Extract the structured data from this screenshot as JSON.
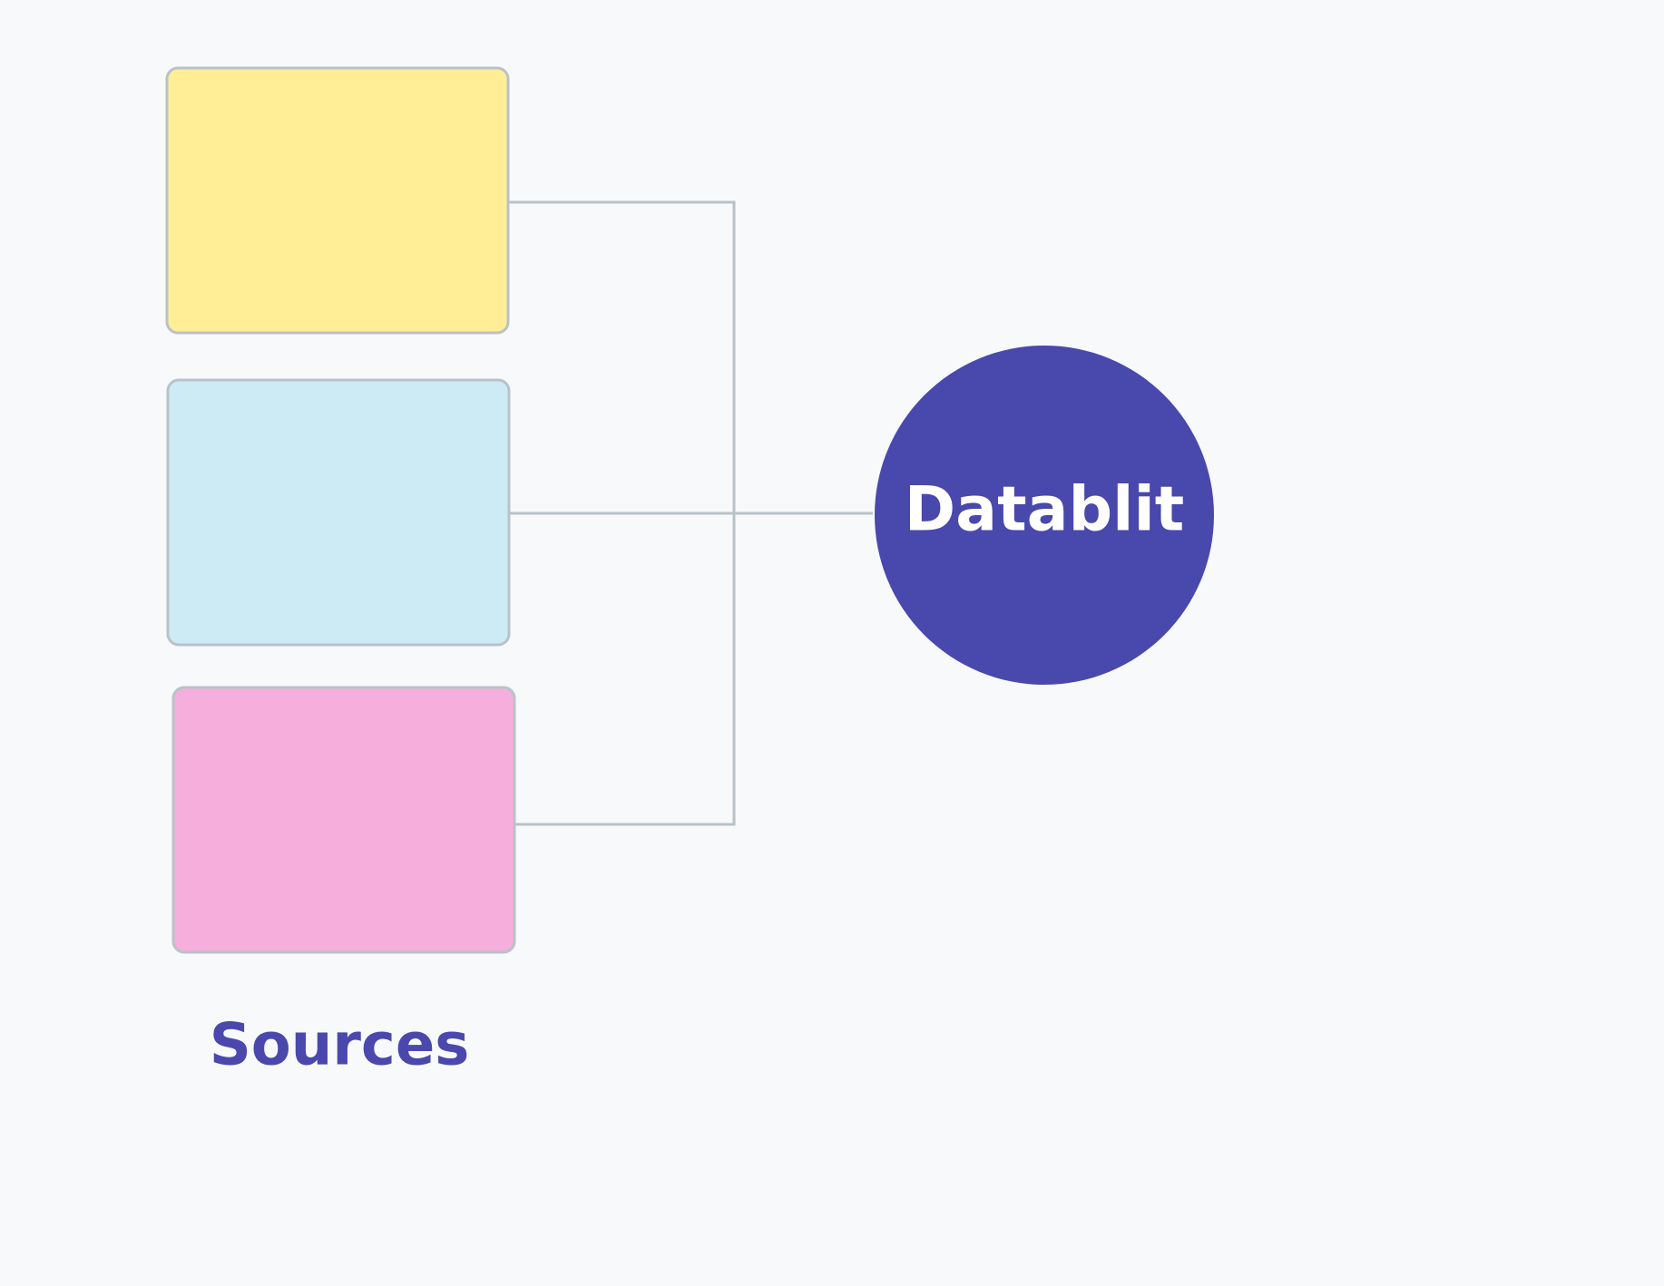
{
  "hub": {
    "label": "Datablit"
  },
  "sources": {
    "label": "Sources"
  }
}
